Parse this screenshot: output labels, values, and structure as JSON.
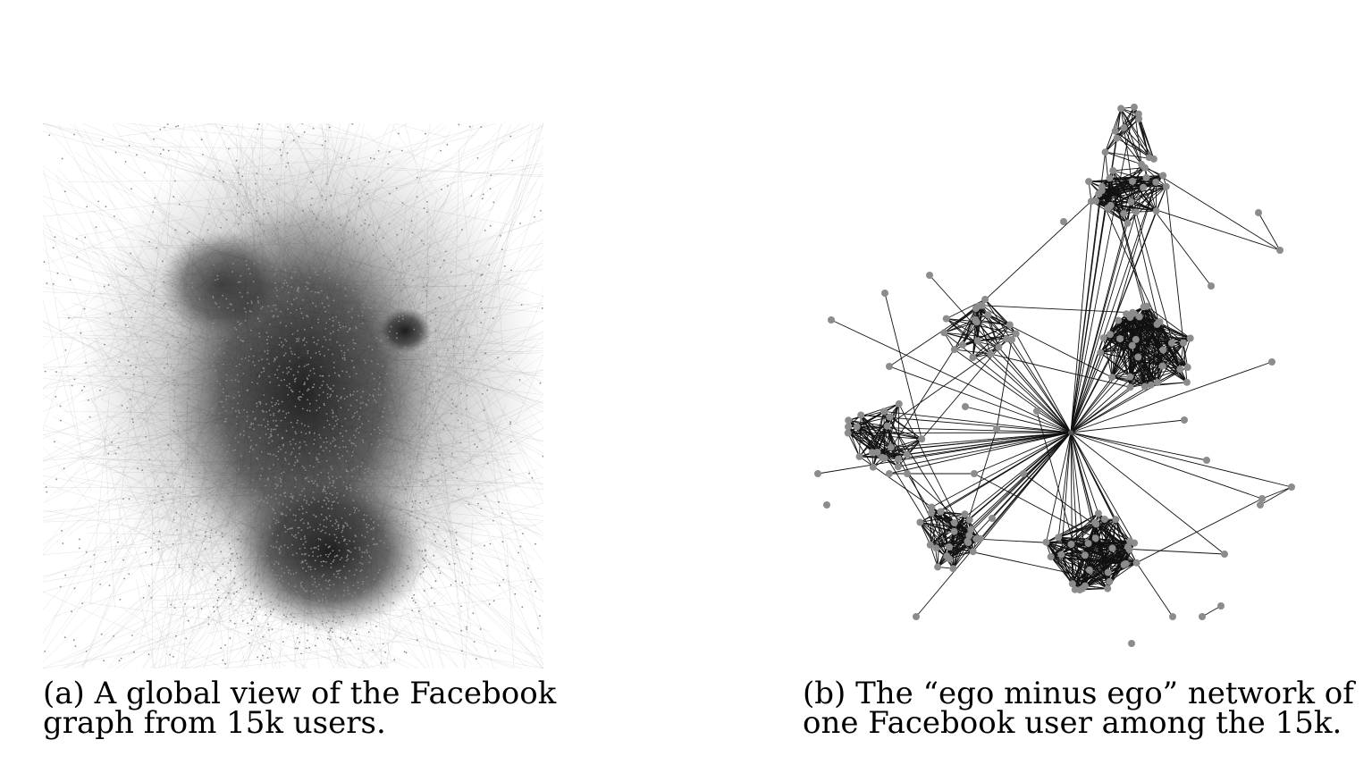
{
  "figure": {
    "panel_a": {
      "caption_line1": "(a) A global view of the Facebook",
      "caption_line2": "graph from 15k users."
    },
    "panel_b": {
      "caption_line1": "(b) The “ego minus ego” network of",
      "caption_line2": "one Facebook user among the 15k."
    }
  },
  "colors": {
    "node": "#8c8c8c",
    "edge": "#111111",
    "dense_core": "#1a1a1a",
    "faint_edge": "#bdbdbd"
  }
}
